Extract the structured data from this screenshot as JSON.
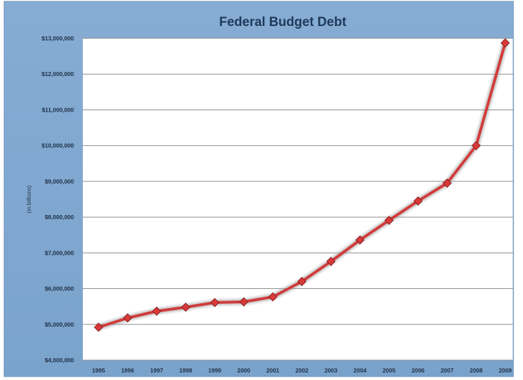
{
  "colors": {
    "outer_background": "#7fa7cf",
    "plot_background": "#ffffff",
    "gridline": "#8c8c8c",
    "series_line": "#d23b3b",
    "series_glow": "#9b9b9b",
    "marker_fill": "#d83a3a",
    "marker_stroke": "#8a1f1f",
    "title": "#1f3a5a"
  },
  "chart_data": {
    "type": "line",
    "title": "Federal Budget Debt",
    "xlabel": "",
    "ylabel": "(in billions)",
    "categories": [
      "1995",
      "1996",
      "1997",
      "1998",
      "1999",
      "2000",
      "2001",
      "2002",
      "2003",
      "2004",
      "2005",
      "2006",
      "2007",
      "2008",
      "2009"
    ],
    "series": [
      {
        "values": [
          4920000,
          5180000,
          5370000,
          5480000,
          5610000,
          5630000,
          5770000,
          6200000,
          6760000,
          7360000,
          7910000,
          8450000,
          8950000,
          10000000,
          12870000
        ],
        "marker": "diamond"
      }
    ],
    "ylim": [
      4000000,
      13000000
    ],
    "y_ticks": [
      "$4,000,000",
      "$5,000,000",
      "$6,000,000",
      "$7,000,000",
      "$8,000,000",
      "$9,000,000",
      "$10,000,000",
      "$11,000,000",
      "$12,000,000",
      "$13,000,000"
    ],
    "y_tick_values": [
      4000000,
      5000000,
      6000000,
      7000000,
      8000000,
      9000000,
      10000000,
      11000000,
      12000000,
      13000000
    ],
    "grid": "horizontal",
    "legend": "none"
  }
}
